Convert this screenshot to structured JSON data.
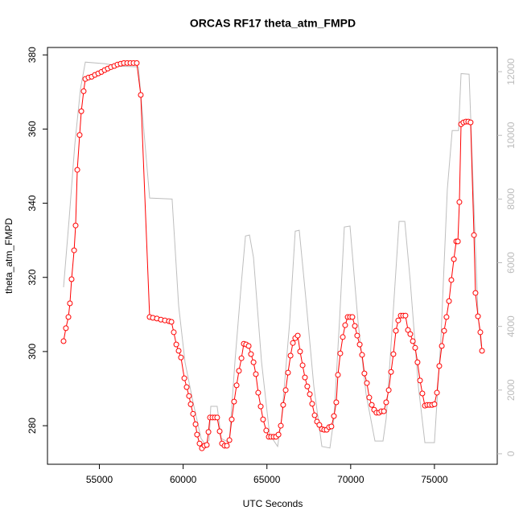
{
  "chart_data": {
    "type": "line",
    "title": "ORCAS RF17 theta_atm_FMPD",
    "x_label": "UTC Seconds",
    "y_label": "theta_atm_FMPD",
    "xlim": [
      51900,
      78750
    ],
    "ylim": [
      269.6,
      382
    ],
    "y2lim": [
      -330,
      12760
    ],
    "xticks": [
      55000,
      60000,
      65000,
      70000,
      75000
    ],
    "yticks": [
      280,
      300,
      320,
      340,
      360,
      380
    ],
    "y2ticks": [
      0,
      2000,
      4000,
      6000,
      8000,
      10000,
      12000
    ],
    "series": [
      {
        "color": "#bebebe",
        "axis": "y2",
        "markers": false,
        "x": [
          52860,
          53200,
          53530,
          53870,
          54160,
          55310,
          56270,
          57330,
          58000,
          59340,
          59730,
          60110,
          60590,
          61070,
          61310,
          61550,
          61650,
          62030,
          62270,
          62750,
          63090,
          63480,
          63720,
          63960,
          64200,
          64680,
          65160,
          65640,
          65880,
          66360,
          66690,
          66930,
          67320,
          67800,
          68280,
          68760,
          69000,
          69330,
          69620,
          69960,
          70440,
          70920,
          71450,
          71930,
          72120,
          72500,
          72890,
          73230,
          73560,
          74040,
          74430,
          75000,
          75390,
          75770,
          76060,
          76440,
          76590,
          77070,
          77310,
          77600,
          77790
        ],
        "values": [
          5230,
          7420,
          9700,
          11460,
          12300,
          12250,
          12170,
          12150,
          8030,
          8000,
          4650,
          2880,
          1620,
          480,
          300,
          430,
          1490,
          1490,
          480,
          350,
          2880,
          5400,
          6840,
          6870,
          6160,
          2880,
          610,
          230,
          1110,
          4140,
          6990,
          7020,
          4900,
          2120,
          230,
          180,
          1110,
          4140,
          7120,
          7150,
          4140,
          1870,
          400,
          400,
          1110,
          4140,
          7300,
          7300,
          5400,
          2120,
          350,
          350,
          3640,
          8310,
          10150,
          10150,
          11940,
          11920,
          8430,
          4390,
          3380
        ]
      },
      {
        "color": "#ff0000",
        "axis": "y",
        "markers": true,
        "x": [
          52860,
          53000,
          53150,
          53240,
          53340,
          53490,
          53580,
          53680,
          53820,
          53920,
          54060,
          54160,
          54350,
          54540,
          54730,
          54930,
          55120,
          55310,
          55500,
          55690,
          55890,
          56080,
          56270,
          56460,
          56660,
          56850,
          57040,
          57230,
          57470,
          58000,
          58190,
          58430,
          58670,
          58910,
          59150,
          59300,
          59440,
          59590,
          59730,
          59870,
          60070,
          60210,
          60350,
          60450,
          60590,
          60740,
          60830,
          60980,
          61120,
          61270,
          61410,
          61510,
          61600,
          61750,
          61890,
          62030,
          62180,
          62320,
          62470,
          62610,
          62760,
          62900,
          63040,
          63190,
          63330,
          63480,
          63620,
          63760,
          63910,
          64050,
          64200,
          64340,
          64480,
          64630,
          64770,
          64960,
          65110,
          65250,
          65400,
          65540,
          65690,
          65830,
          65970,
          66120,
          66260,
          66410,
          66550,
          66690,
          66840,
          66980,
          67130,
          67270,
          67410,
          67560,
          67700,
          67850,
          67990,
          68130,
          68280,
          68420,
          68570,
          68710,
          68850,
          69000,
          69140,
          69240,
          69380,
          69530,
          69670,
          69820,
          69960,
          70100,
          70250,
          70390,
          70540,
          70680,
          70820,
          70970,
          71110,
          71260,
          71400,
          71540,
          71690,
          71830,
          71980,
          72120,
          72270,
          72410,
          72550,
          72700,
          72840,
          72990,
          73130,
          73270,
          73420,
          73560,
          73710,
          73850,
          73990,
          74140,
          74280,
          74430,
          74570,
          74710,
          74860,
          75000,
          75150,
          75290,
          75440,
          75580,
          75720,
          75870,
          76010,
          76160,
          76300,
          76400,
          76490,
          76590,
          76730,
          76880,
          77020,
          77160,
          77360,
          77450,
          77600,
          77740,
          77840
        ],
        "values": [
          302.8,
          306.3,
          309.3,
          313.0,
          319.5,
          327.3,
          334.0,
          349.0,
          358.4,
          364.8,
          370.2,
          373.5,
          373.9,
          374.1,
          374.6,
          375.0,
          375.4,
          375.9,
          376.3,
          376.7,
          377.0,
          377.4,
          377.6,
          377.8,
          377.8,
          377.8,
          377.8,
          377.8,
          369.2,
          309.3,
          309.1,
          308.9,
          308.6,
          308.4,
          308.2,
          308.0,
          305.2,
          301.9,
          300.2,
          298.4,
          292.8,
          290.4,
          288.0,
          285.8,
          283.2,
          280.4,
          277.6,
          275.2,
          273.9,
          274.6,
          274.8,
          278.3,
          282.2,
          282.2,
          282.2,
          282.2,
          278.5,
          275.2,
          274.6,
          274.6,
          276.1,
          281.7,
          286.5,
          290.9,
          294.8,
          298.2,
          302.1,
          301.9,
          301.5,
          299.3,
          297.1,
          293.9,
          288.9,
          285.2,
          281.7,
          278.7,
          277.0,
          277.0,
          277.0,
          277.0,
          277.6,
          280.0,
          285.6,
          289.6,
          294.3,
          298.9,
          302.3,
          303.6,
          304.3,
          300.0,
          296.3,
          293.0,
          290.6,
          288.5,
          285.9,
          282.8,
          281.1,
          280.2,
          279.1,
          278.9,
          278.9,
          279.6,
          279.8,
          282.6,
          286.3,
          293.7,
          299.5,
          303.9,
          307.1,
          309.3,
          309.3,
          309.3,
          306.9,
          304.3,
          301.9,
          299.1,
          294.1,
          291.5,
          287.6,
          285.6,
          284.3,
          283.5,
          283.5,
          283.9,
          283.9,
          286.3,
          289.6,
          294.5,
          299.3,
          305.6,
          308.4,
          309.7,
          309.7,
          309.7,
          305.8,
          304.7,
          302.8,
          301.0,
          297.1,
          292.2,
          288.7,
          285.4,
          285.6,
          285.6,
          285.6,
          285.8,
          288.9,
          296.1,
          301.5,
          305.6,
          309.3,
          313.6,
          319.3,
          324.9,
          329.7,
          329.7,
          340.3,
          361.3,
          361.8,
          362.0,
          362.0,
          361.8,
          331.4,
          315.8,
          309.5,
          305.2,
          300.2
        ]
      }
    ]
  }
}
